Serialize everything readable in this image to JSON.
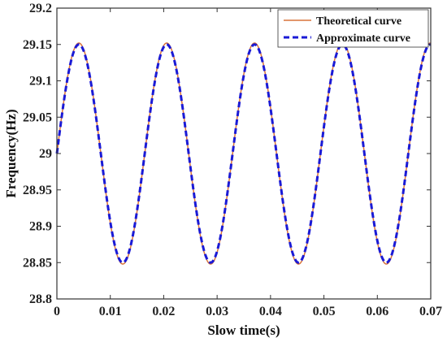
{
  "chart_data": {
    "type": "line",
    "xlabel": "Slow time(s)",
    "ylabel": "Frequency(Hz)",
    "xlim": [
      0,
      0.07
    ],
    "ylim": [
      28.8,
      29.2
    ],
    "xticks": [
      "0",
      "0.01",
      "0.02",
      "0.03",
      "0.04",
      "0.05",
      "0.06",
      "0.07"
    ],
    "yticks": [
      "28.8",
      "28.85",
      "28.9",
      "28.95",
      "29",
      "29.05",
      "29.1",
      "29.15",
      "29.2"
    ],
    "grid": false,
    "legend_position": "top-right",
    "series": [
      {
        "name": "Theoretical curve",
        "style": "solid",
        "color": "#d9733a",
        "function": {
          "offset": 29.0,
          "amplitude": 0.152,
          "period": 0.01645,
          "phase": 0
        },
        "x": [
          0,
          0.0041,
          0.0082,
          0.0123,
          0.0165,
          0.0206,
          0.0247,
          0.0288,
          0.0329,
          0.037,
          0.0411,
          0.0452,
          0.0494,
          0.0535,
          0.0576,
          0.0617,
          0.0658,
          0.07
        ],
        "y": [
          29.0,
          29.152,
          29.0,
          28.848,
          29.0,
          29.152,
          29.0,
          28.848,
          29.0,
          29.152,
          29.0,
          28.848,
          29.0,
          29.152,
          29.0,
          28.848,
          29.0,
          29.15
        ]
      },
      {
        "name": "Approximate curve",
        "style": "dashed",
        "color": "#1a1ad6",
        "function": {
          "offset": 29.0,
          "amplitude": 0.15,
          "period": 0.01645,
          "phase": 0
        },
        "x": [
          0,
          0.0041,
          0.0082,
          0.0123,
          0.0165,
          0.0206,
          0.0247,
          0.0288,
          0.0329,
          0.037,
          0.0411,
          0.0452,
          0.0494,
          0.0535,
          0.0576,
          0.0617,
          0.0658,
          0.07
        ],
        "y": [
          29.0,
          29.15,
          29.0,
          28.85,
          29.0,
          29.15,
          29.0,
          28.85,
          29.0,
          29.15,
          29.0,
          28.85,
          29.0,
          29.15,
          29.0,
          28.85,
          29.0,
          29.148
        ]
      }
    ]
  }
}
